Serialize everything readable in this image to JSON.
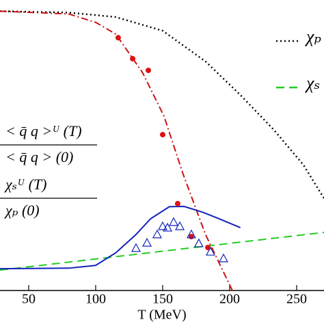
{
  "chart_data": {
    "type": "line",
    "x_label": "T (MeV)",
    "xlim": [
      28.6,
      270.4
    ],
    "ylim": [
      0,
      1.04
    ],
    "xticks": [
      50,
      100,
      150,
      200,
      250
    ],
    "series": [
      {
        "name": "χₚ",
        "color": "#000000",
        "style": "dotted",
        "legend": true,
        "x": [
          28.6,
          80,
          115,
          150,
          182,
          208,
          233,
          255,
          270.4
        ],
        "values": [
          1.0,
          0.995,
          0.979,
          0.93,
          0.82,
          0.7,
          0.575,
          0.45,
          0.33
        ]
      },
      {
        "name": "χₛ",
        "color": "#22cc22",
        "style": "dashed",
        "legend": true,
        "x": [
          28.6,
          270.4
        ],
        "values": [
          0.073,
          0.208
        ]
      },
      {
        "color": "#cc1111",
        "style": "dashdot",
        "x": [
          28.6,
          80,
          100,
          115,
          135,
          151,
          165,
          182,
          202
        ],
        "values": [
          1.0,
          0.99,
          0.96,
          0.918,
          0.78,
          0.624,
          0.42,
          0.2,
          0
        ]
      },
      {
        "color": "#1122bb",
        "style": "solid",
        "x": [
          28.6,
          80,
          100,
          115,
          130,
          141,
          155,
          166,
          180,
          192,
          208
        ],
        "values": [
          0.078,
          0.08,
          0.09,
          0.135,
          0.2,
          0.257,
          0.3,
          0.301,
          0.28,
          0.257,
          0.225
        ]
      },
      {
        "color": "#dd1111",
        "style": "dots",
        "x": [
          116.8,
          127.6,
          139.3,
          150,
          161.2,
          171.4,
          183.7
        ],
        "values": [
          0.905,
          0.83,
          0.788,
          0.558,
          0.311,
          0.193,
          0.154
        ]
      },
      {
        "color": "#1122bb",
        "style": "triangles",
        "x": [
          130.1,
          138.3,
          145.9,
          150,
          153.6,
          158.2,
          162.8,
          171.4,
          177,
          185.7,
          195.4
        ],
        "values": [
          0.152,
          0.171,
          0.201,
          0.23,
          0.225,
          0.245,
          0.23,
          0.201,
          0.169,
          0.139,
          0.115
        ]
      }
    ],
    "annotations": [
      {
        "numerator": "< q̄ q >ᵁ (T)",
        "denominator": "< q̄ q > (0)"
      },
      {
        "numerator": "χₛᵁ (T)",
        "denominator": "χₚ (0)"
      }
    ]
  }
}
